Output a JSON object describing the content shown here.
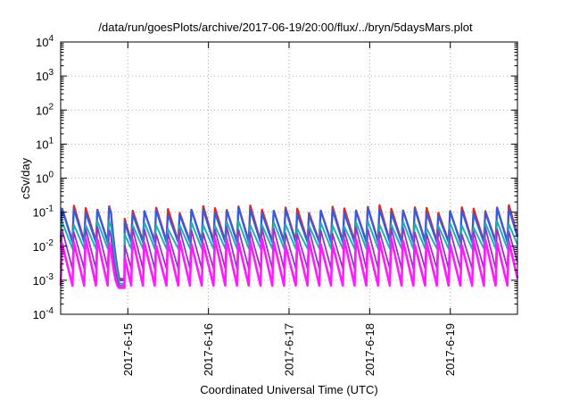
{
  "chart_data": {
    "type": "line",
    "title": "/data/run/goesPlots/archive/2017-06-19/20:00/flux/../bryn/5daysMars.plot",
    "xlabel": "Coordinated Universal Time (UTC)",
    "ylabel": "cSv/day",
    "y_scale": "log",
    "ylim": [
      0.0001,
      10000
    ],
    "y_ticks": [
      {
        "base": "10",
        "exp": "-4"
      },
      {
        "base": "10",
        "exp": "-3"
      },
      {
        "base": "10",
        "exp": "-2"
      },
      {
        "base": "10",
        "exp": "-1"
      },
      {
        "base": "10",
        "exp": "0"
      },
      {
        "base": "10",
        "exp": "1"
      },
      {
        "base": "10",
        "exp": "2"
      },
      {
        "base": "10",
        "exp": "3"
      },
      {
        "base": "10",
        "exp": "4"
      }
    ],
    "xlim": [
      "2017-06-14T04:00",
      "2017-06-19T20:00"
    ],
    "x_ticks": [
      "2017-6-15",
      "2017-6-16",
      "2017-6-17",
      "2017-6-18",
      "2017-6-19"
    ],
    "grid": true,
    "sawtooth_period_hours": 3.5,
    "anomaly_window": [
      "2017-06-14T19:00",
      "2017-06-14T23:00"
    ],
    "series_order": [
      "red",
      "blue",
      "teal",
      "purple",
      "magenta"
    ],
    "series": [
      {
        "color": "#e8251f",
        "peak": 0.13,
        "trough": 0.014,
        "anomaly_low": 0.0011
      },
      {
        "color": "#2f5fe0",
        "peak": 0.11,
        "trough": 0.013,
        "anomaly_low": 0.001
      },
      {
        "color": "#1fb0b5",
        "peak": 0.045,
        "trough": 0.0085,
        "anomaly_low": 0.0008
      },
      {
        "color": "#9b30c8",
        "peak": 0.03,
        "trough": 0.0022,
        "anomaly_low": 0.0007
      },
      {
        "color": "#ff1aff",
        "peak": 0.014,
        "trough": 0.0007,
        "anomaly_low": 0.0006
      }
    ]
  }
}
